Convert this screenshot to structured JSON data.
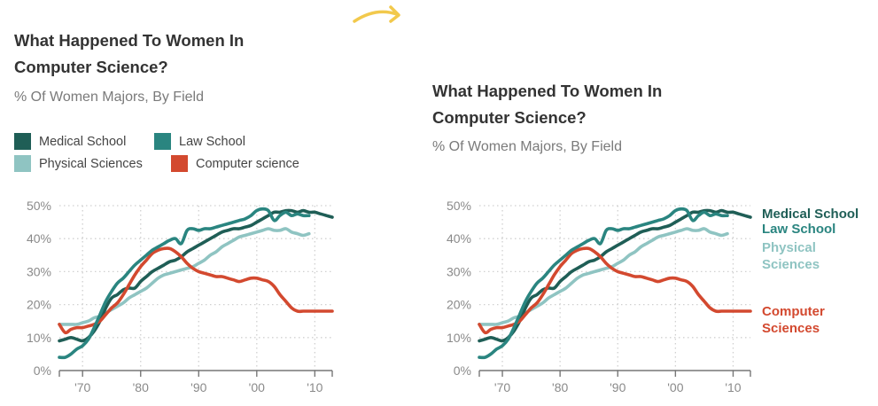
{
  "decoration": {
    "arrow_color": "#f2c94c"
  },
  "panels": [
    {
      "title_line1": "What Happened To Women In",
      "title_line2": "Computer Science?",
      "subtitle": "% Of Women Majors, By Field",
      "legend": [
        {
          "label": "Medical School"
        },
        {
          "label": "Law School"
        },
        {
          "label": "Physical Sciences"
        },
        {
          "label": "Computer science"
        }
      ]
    },
    {
      "title_line1": "What Happened To Women In",
      "title_line2": "Computer Science?",
      "subtitle": "% Of Women Majors, By Field",
      "direct_labels": [
        {
          "lines": [
            "Medical School"
          ]
        },
        {
          "lines": [
            "Law School"
          ]
        },
        {
          "lines": [
            "Physical",
            "Sciences"
          ]
        },
        {
          "lines": [
            "Computer",
            "Sciences"
          ]
        }
      ]
    }
  ],
  "chart_data": {
    "type": "line",
    "title": "What Happened To Women In Computer Science?",
    "subtitle": "% Of Women Majors, By Field",
    "xlabel": "",
    "ylabel": "",
    "xlim": [
      1966,
      2013
    ],
    "ylim": [
      0,
      50
    ],
    "x_ticks": [
      1970,
      1980,
      1990,
      2000,
      2010
    ],
    "x_tick_labels": [
      "'70",
      "'80",
      "'90",
      "'00",
      "'10"
    ],
    "y_ticks": [
      0,
      10,
      20,
      30,
      40,
      50
    ],
    "y_tick_labels": [
      "0%",
      "10%",
      "20%",
      "30%",
      "40%",
      "50%"
    ],
    "grid": true,
    "legend_position": "top-left",
    "series": [
      {
        "name": "Medical School",
        "color": "#1f5e56",
        "x": [
          1966,
          1967,
          1968,
          1969,
          1970,
          1971,
          1972,
          1973,
          1974,
          1975,
          1976,
          1977,
          1978,
          1979,
          1980,
          1981,
          1982,
          1983,
          1984,
          1985,
          1986,
          1987,
          1988,
          1989,
          1990,
          1991,
          1992,
          1993,
          1994,
          1995,
          1996,
          1997,
          1998,
          1999,
          2000,
          2001,
          2002,
          2003,
          2004,
          2005,
          2006,
          2007,
          2008,
          2009,
          2010,
          2011,
          2012,
          2013
        ],
        "values": [
          9,
          9.5,
          10,
          9.5,
          9,
          10,
          12,
          15,
          19,
          22,
          23,
          24.5,
          25,
          25,
          27,
          28.5,
          30,
          31,
          32,
          33,
          33.5,
          34.5,
          36,
          37,
          38,
          39,
          40,
          41,
          42,
          42.5,
          43,
          43,
          43.5,
          44,
          45,
          46,
          47,
          48,
          48,
          48.5,
          48.5,
          48,
          48.5,
          48,
          48,
          47.5,
          47,
          46.5
        ]
      },
      {
        "name": "Law School",
        "color": "#2a8580",
        "x": [
          1966,
          1967,
          1968,
          1969,
          1970,
          1971,
          1972,
          1973,
          1974,
          1975,
          1976,
          1977,
          1978,
          1979,
          1980,
          1981,
          1982,
          1983,
          1984,
          1985,
          1986,
          1987,
          1988,
          1989,
          1990,
          1991,
          1992,
          1993,
          1994,
          1995,
          1996,
          1997,
          1998,
          1999,
          2000,
          2001,
          2002,
          2003,
          2004,
          2005,
          2006,
          2007,
          2008,
          2009
        ],
        "values": [
          4,
          4,
          5,
          6.5,
          7.5,
          9.5,
          13,
          17,
          21,
          24,
          26.5,
          28,
          30,
          32,
          33.5,
          35,
          36.5,
          37.5,
          38.5,
          39.5,
          40,
          38.5,
          42.5,
          43,
          42.5,
          43,
          43,
          43.5,
          44,
          44.5,
          45,
          45.5,
          46,
          47,
          48.5,
          49,
          48.5,
          45.5,
          47,
          48,
          47,
          47.5,
          47,
          47
        ]
      },
      {
        "name": "Physical Sciences",
        "color": "#8fc4c2",
        "x": [
          1966,
          1967,
          1968,
          1969,
          1970,
          1971,
          1972,
          1973,
          1974,
          1975,
          1976,
          1977,
          1978,
          1979,
          1980,
          1981,
          1982,
          1983,
          1984,
          1985,
          1986,
          1987,
          1988,
          1989,
          1990,
          1991,
          1992,
          1993,
          1994,
          1995,
          1996,
          1997,
          1998,
          1999,
          2000,
          2001,
          2002,
          2003,
          2004,
          2005,
          2006,
          2007,
          2008,
          2009
        ],
        "values": [
          14,
          14,
          14,
          14,
          14.5,
          15,
          16,
          16.5,
          17.5,
          18.5,
          19.5,
          20.5,
          22,
          23,
          24,
          25,
          26.5,
          28,
          29,
          29.5,
          30,
          30.5,
          31,
          31.5,
          32.5,
          33.5,
          35,
          36,
          37.5,
          38.5,
          39.5,
          40.5,
          41,
          41.5,
          42,
          42.5,
          43,
          42.5,
          42.5,
          43,
          42,
          41.5,
          41,
          41.5
        ]
      },
      {
        "name": "Computer Science",
        "color": "#d3492f",
        "x": [
          1966,
          1967,
          1968,
          1969,
          1970,
          1971,
          1972,
          1973,
          1974,
          1975,
          1976,
          1977,
          1978,
          1979,
          1980,
          1981,
          1982,
          1983,
          1984,
          1985,
          1986,
          1987,
          1988,
          1989,
          1990,
          1991,
          1992,
          1993,
          1994,
          1995,
          1996,
          1997,
          1998,
          1999,
          2000,
          2001,
          2002,
          2003,
          2004,
          2005,
          2006,
          2007,
          2008,
          2009,
          2010,
          2011,
          2012,
          2013
        ],
        "values": [
          14,
          11.5,
          12.5,
          13,
          13,
          13.5,
          14,
          15,
          17,
          19,
          20.5,
          23,
          26,
          29,
          31.5,
          33.5,
          35.5,
          36.5,
          37,
          37,
          36,
          34.5,
          32.5,
          31,
          30,
          29.5,
          29,
          28.5,
          28.5,
          28,
          27.5,
          27,
          27.5,
          28,
          28,
          27.5,
          27,
          25.5,
          23,
          21,
          19,
          18,
          18,
          18,
          18,
          18,
          18,
          18
        ]
      }
    ]
  }
}
